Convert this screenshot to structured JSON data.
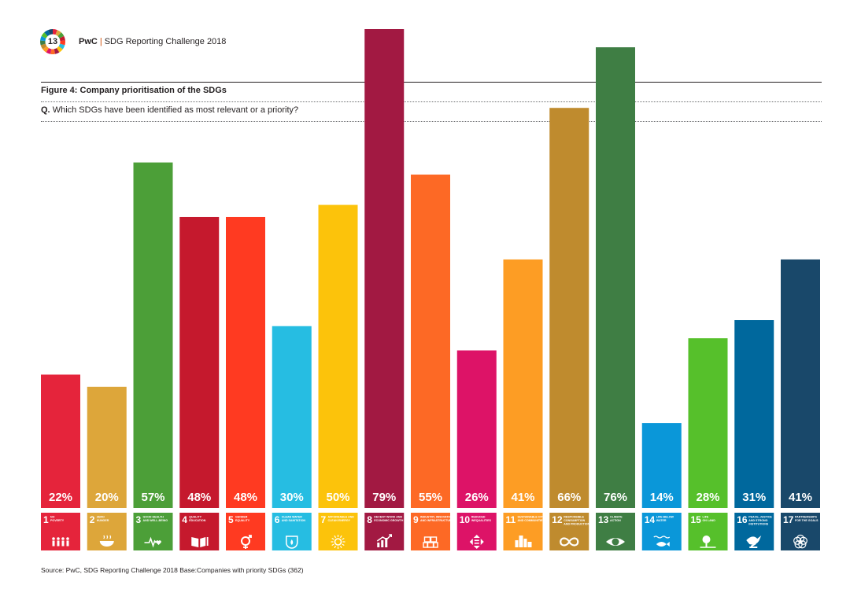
{
  "header": {
    "badge_number": "13",
    "brand": "PwC",
    "report_title": "SDG Reporting Challenge 2018"
  },
  "figure": {
    "title": "Figure 4: Company prioritisation of the SDGs",
    "question_prefix": "Q.",
    "question": "Which SDGs have been identified as most relevant or a priority?"
  },
  "chart_data": {
    "type": "bar",
    "categories": [
      "1 NO POVERTY",
      "2 ZERO HUNGER",
      "3 GOOD HEALTH AND WELL-BEING",
      "4 QUALITY EDUCATION",
      "5 GENDER EQUALITY",
      "6 CLEAN WATER AND SANITATION",
      "7 AFFORDABLE AND CLEAN ENERGY",
      "8 DECENT WORK AND ECONOMIC GROWTH",
      "9 INDUSTRY, INNOVATION AND INFRASTRUCTURE",
      "10 REDUCED INEQUALITIES",
      "11 SUSTAINABLE CITIES AND COMMUNITIES",
      "12 RESPONSIBLE CONSUMPTION AND PRODUCTION",
      "13 CLIMATE ACTION",
      "14 LIFE BELOW WATER",
      "15 LIFE ON LAND",
      "16 PEACE, JUSTICE AND STRONG INSTITUTIONS",
      "17 PARTNERSHIPS FOR THE GOALS"
    ],
    "numbers": [
      "1",
      "2",
      "3",
      "4",
      "5",
      "6",
      "7",
      "8",
      "9",
      "10",
      "11",
      "12",
      "13",
      "14",
      "15",
      "16",
      "17"
    ],
    "tile_labels": [
      [
        "NO",
        "POVERTY"
      ],
      [
        "ZERO",
        "HUNGER"
      ],
      [
        "GOOD HEALTH",
        "AND WELL-BEING"
      ],
      [
        "QUALITY",
        "EDUCATION"
      ],
      [
        "GENDER",
        "EQUALITY"
      ],
      [
        "CLEAN WATER",
        "AND SANITATION"
      ],
      [
        "AFFORDABLE AND",
        "CLEAN ENERGY"
      ],
      [
        "DECENT WORK AND",
        "ECONOMIC GROWTH"
      ],
      [
        "INDUSTRY, INNOVATION",
        "AND INFRASTRUCTURE"
      ],
      [
        "REDUCED",
        "INEQUALITIES"
      ],
      [
        "SUSTAINABLE CITIES",
        "AND COMMUNITIES"
      ],
      [
        "RESPONSIBLE",
        "CONSUMPTION",
        "AND PRODUCTION"
      ],
      [
        "CLIMATE",
        "ACTION"
      ],
      [
        "LIFE BELOW",
        "WATER"
      ],
      [
        "LIFE",
        "ON LAND"
      ],
      [
        "PEACE, JUSTICE",
        "AND STRONG",
        "INSTITUTIONS"
      ],
      [
        "PARTNERSHIPS",
        "FOR THE GOALS"
      ]
    ],
    "values": [
      22,
      20,
      57,
      48,
      48,
      30,
      50,
      79,
      55,
      26,
      41,
      66,
      76,
      14,
      28,
      31,
      41
    ],
    "value_labels": [
      "22%",
      "20%",
      "57%",
      "48%",
      "48%",
      "30%",
      "50%",
      "79%",
      "55%",
      "26%",
      "41%",
      "66%",
      "76%",
      "14%",
      "28%",
      "31%",
      "41%"
    ],
    "colors": [
      "#e5243b",
      "#dda63a",
      "#4c9f38",
      "#c5192d",
      "#ff3a21",
      "#26bde2",
      "#fcc30b",
      "#a21942",
      "#fd6925",
      "#dd1367",
      "#fd9d24",
      "#bf8b2e",
      "#3f7e44",
      "#0a97d9",
      "#56c02b",
      "#00689d",
      "#19486a"
    ],
    "icons": [
      "people-icon",
      "bowl-icon",
      "heartbeat-icon",
      "book-icon",
      "gender-icon",
      "water-drop-icon",
      "sun-icon",
      "growth-chart-icon",
      "cubes-icon",
      "equality-arrows-icon",
      "city-icon",
      "infinity-icon",
      "eye-globe-icon",
      "fish-icon",
      "tree-icon",
      "dove-icon",
      "rings-icon"
    ],
    "ylabel": "",
    "ylim": [
      0,
      80
    ],
    "grid": false,
    "legend": "none"
  },
  "source_note": "Source: PwC, SDG Reporting Challenge 2018  Base:Companies with priority SDGs (362)"
}
